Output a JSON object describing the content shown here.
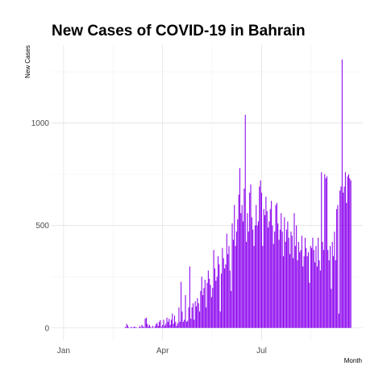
{
  "chart_data": {
    "type": "bar",
    "title": "New Cases of COVID-19 in Bahrain",
    "xlabel": "Month",
    "ylabel": "New Cases",
    "x_ticks": [
      {
        "label": "Jan",
        "date": "2020-01-01"
      },
      {
        "label": "Apr",
        "date": "2020-04-01"
      },
      {
        "label": "Jul",
        "date": "2020-07-01"
      }
    ],
    "y_ticks": [
      0,
      500,
      1000
    ],
    "xlim": [
      "2019-12-21",
      "2020-10-02"
    ],
    "ylim": [
      -60,
      1380
    ],
    "grid": true,
    "legend": "none",
    "colors": {
      "bar": "#8B00EE",
      "grid_major": "#e3e3e3",
      "grid_minor": "#f0f0f0"
    },
    "series": [
      {
        "x_start": "2020-02-24",
        "values": [
          0,
          0,
          1,
          5,
          20,
          12,
          3,
          0,
          5,
          3,
          2,
          7,
          4,
          2,
          0,
          2,
          10,
          3,
          15,
          8,
          3,
          45,
          50,
          20,
          8,
          15,
          5,
          2,
          10,
          0,
          8,
          18,
          25,
          10,
          30,
          38,
          5,
          15,
          40,
          10,
          20,
          50,
          30,
          45,
          15,
          40,
          70,
          20,
          60,
          30,
          10,
          22,
          100,
          30,
          225,
          80,
          30,
          40,
          160,
          30,
          35,
          100,
          300,
          45,
          100,
          120,
          40,
          130,
          105,
          145,
          120,
          80,
          180,
          250,
          160,
          195,
          235,
          100,
          220,
          280,
          240,
          210,
          150,
          195,
          380,
          290,
          230,
          250,
          350,
          310,
          80,
          265,
          390,
          340,
          290,
          310,
          460,
          360,
          400,
          280,
          180,
          510,
          430,
          600,
          400,
          470,
          530,
          650,
          780,
          560,
          600,
          520,
          680,
          1040,
          420,
          560,
          470,
          660,
          700,
          540,
          480,
          400,
          500,
          600,
          500,
          520,
          690,
          720,
          660,
          400,
          580,
          550,
          640,
          570,
          490,
          520,
          580,
          620,
          500,
          410,
          470,
          600,
          610,
          510,
          430,
          480,
          560,
          470,
          350,
          540,
          420,
          480,
          520,
          440,
          360,
          470,
          450,
          340,
          560,
          400,
          500,
          330,
          420,
          370,
          380,
          450,
          300,
          350,
          440,
          390,
          350,
          370,
          220,
          400,
          390,
          440,
          380,
          320,
          400,
          300,
          440,
          330,
          280,
          760,
          420,
          380,
          750,
          730,
          740,
          380,
          330,
          400,
          190,
          420,
          350,
          470,
          330,
          580,
          600,
          70,
          670,
          690,
          1310,
          660,
          690,
          760,
          610,
          740,
          750,
          730,
          720
        ]
      }
    ]
  }
}
